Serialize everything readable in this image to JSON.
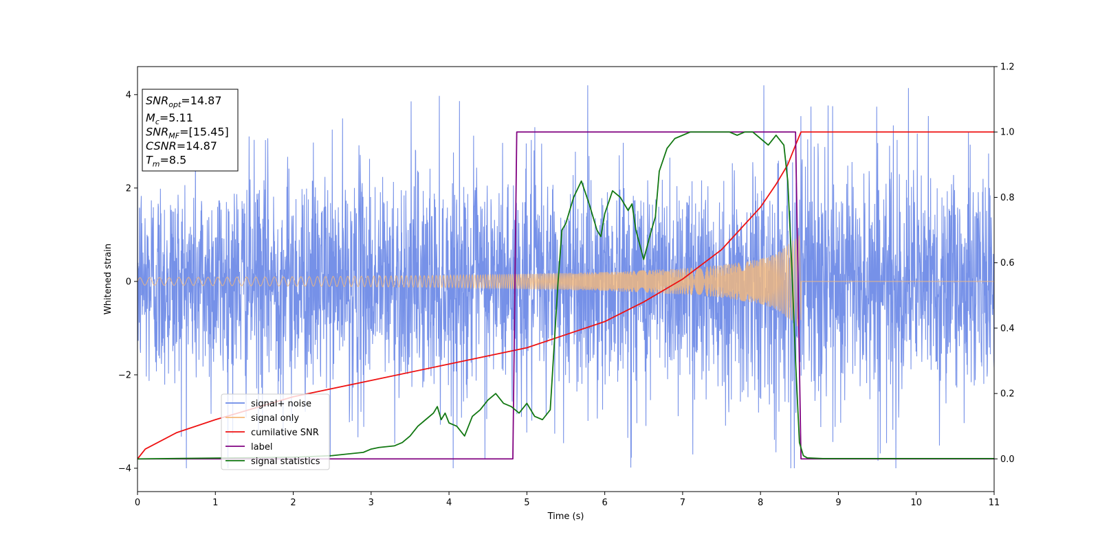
{
  "chart_data": {
    "type": "line",
    "xlabel": "Time (s)",
    "ylabel": "Whitened strain",
    "xlim": [
      0,
      11
    ],
    "ylim": [
      -4.5,
      4.6
    ],
    "ylim_right": [
      -0.1,
      1.2
    ],
    "x_ticks": [
      0,
      1,
      2,
      3,
      4,
      5,
      6,
      7,
      8,
      9,
      10,
      11
    ],
    "y_ticks": [
      -4,
      -2,
      0,
      2,
      4
    ],
    "y_ticks_right": [
      "0.0",
      "0.2",
      "0.4",
      "0.6",
      "0.8",
      "1.0",
      "1.2"
    ],
    "grid": false,
    "legend_position": "lower-left",
    "info_box": [
      {
        "base": "SNR",
        "sub": "opt",
        "value": "=14.87"
      },
      {
        "base": "M",
        "sub": "c",
        "value": "=5.11"
      },
      {
        "base": "SNR",
        "sub": "MF",
        "value": "=[15.45]"
      },
      {
        "base": "CSNR",
        "sub": "",
        "value": "=14.87"
      },
      {
        "base": "T",
        "sub": "m",
        "value": "=8.5"
      }
    ],
    "series": [
      {
        "name": "signal+ noise",
        "axis": "left",
        "color": "#6a88e6",
        "kind": "noise",
        "approx_range": [
          -4.0,
          4.2
        ],
        "typical_amplitude": 1.5
      },
      {
        "name": "signal only",
        "axis": "left",
        "color": "#f5b97a",
        "kind": "chirp",
        "merger_time": 8.5,
        "envelope": {
          "x": [
            0,
            2,
            4,
            6,
            7,
            7.5,
            8,
            8.2,
            8.4,
            8.5,
            11
          ],
          "y": [
            0.08,
            0.1,
            0.13,
            0.2,
            0.28,
            0.35,
            0.48,
            0.6,
            0.85,
            1.0,
            0.0
          ]
        }
      },
      {
        "name": "cumilative SNR",
        "axis": "right",
        "color": "#ee1111",
        "x": [
          0,
          0.1,
          0.5,
          1,
          2,
          3,
          4,
          5,
          5.5,
          6,
          6.5,
          7,
          7.5,
          8,
          8.2,
          8.35,
          8.45,
          8.52,
          11
        ],
        "y": [
          0.0,
          0.03,
          0.08,
          0.12,
          0.19,
          0.24,
          0.29,
          0.34,
          0.38,
          0.42,
          0.48,
          0.55,
          0.64,
          0.77,
          0.84,
          0.9,
          0.96,
          1.0,
          1.0
        ]
      },
      {
        "name": "label",
        "axis": "right",
        "color": "#800080",
        "x": [
          0,
          4.82,
          4.87,
          8.45,
          8.52,
          11
        ],
        "y": [
          0,
          0,
          1,
          1,
          0,
          0
        ]
      },
      {
        "name": "signal statistics",
        "axis": "right",
        "color": "#117711",
        "x": [
          0,
          2,
          2.5,
          2.9,
          3.0,
          3.1,
          3.3,
          3.4,
          3.5,
          3.6,
          3.7,
          3.8,
          3.85,
          3.9,
          3.95,
          4.0,
          4.1,
          4.2,
          4.3,
          4.4,
          4.5,
          4.6,
          4.7,
          4.8,
          4.85,
          4.9,
          5.0,
          5.1,
          5.2,
          5.3,
          5.4,
          5.45,
          5.5,
          5.55,
          5.6,
          5.7,
          5.8,
          5.9,
          5.95,
          6.0,
          6.1,
          6.2,
          6.3,
          6.35,
          6.4,
          6.5,
          6.6,
          6.65,
          6.7,
          6.8,
          6.9,
          7.0,
          7.1,
          7.2,
          7.4,
          7.6,
          7.7,
          7.8,
          7.9,
          8.0,
          8.1,
          8.2,
          8.3,
          8.35,
          8.4,
          8.45,
          8.5,
          8.55,
          8.6,
          8.7,
          8.8,
          11
        ],
        "y": [
          0,
          0.005,
          0.01,
          0.02,
          0.03,
          0.035,
          0.04,
          0.05,
          0.07,
          0.1,
          0.12,
          0.14,
          0.16,
          0.12,
          0.14,
          0.11,
          0.1,
          0.07,
          0.13,
          0.15,
          0.18,
          0.2,
          0.17,
          0.16,
          0.15,
          0.14,
          0.17,
          0.13,
          0.12,
          0.15,
          0.54,
          0.7,
          0.72,
          0.76,
          0.8,
          0.85,
          0.78,
          0.7,
          0.68,
          0.75,
          0.82,
          0.8,
          0.76,
          0.78,
          0.7,
          0.61,
          0.7,
          0.74,
          0.88,
          0.95,
          0.98,
          0.99,
          1.0,
          1.0,
          1.0,
          1.0,
          0.99,
          1.0,
          1.0,
          0.98,
          0.96,
          0.99,
          0.96,
          0.85,
          0.6,
          0.3,
          0.05,
          0.01,
          0.003,
          0.002,
          0.001,
          0.001
        ]
      }
    ]
  }
}
